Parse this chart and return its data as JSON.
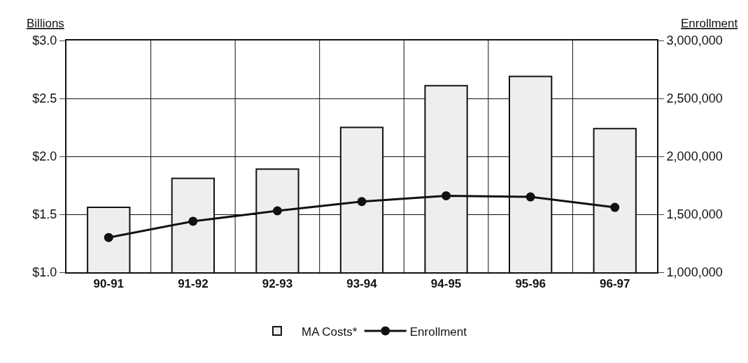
{
  "chart_data": {
    "type": "bar",
    "ylabel": "Billions",
    "y2label": "Enrollment",
    "categories": [
      "90-91",
      "91-92",
      "92-93",
      "93-94",
      "94-95",
      "95-96",
      "96-97"
    ],
    "series": [
      {
        "name": "MA Costs*",
        "color": "#eeeeee",
        "values": [
          1.56,
          1.81,
          1.89,
          2.25,
          2.61,
          2.69,
          2.24
        ]
      },
      {
        "name": "Enrollment",
        "type": "line",
        "axis": "y2",
        "color": "#111111",
        "marker": "circle",
        "values": [
          1300000,
          1440000,
          1530000,
          1610000,
          1660000,
          1650000,
          1560000
        ]
      }
    ],
    "ylim": [
      1,
      3
    ],
    "yticks": [
      {
        "value": 1,
        "label": "$1.0"
      },
      {
        "value": 1.5,
        "label": "$1.5"
      },
      {
        "value": 2,
        "label": "$2.0"
      },
      {
        "value": 2.5,
        "label": "$2.5"
      },
      {
        "value": 3,
        "label": "$3.0"
      }
    ],
    "y2lim": [
      1000000,
      3000000
    ],
    "y2ticks": [
      {
        "value": 1000000,
        "label": "1,000,000"
      },
      {
        "value": 1500000,
        "label": "1,500,000"
      },
      {
        "value": 2000000,
        "label": "2,000,000"
      },
      {
        "value": 2500000,
        "label": "2,500,000"
      },
      {
        "value": 3000000,
        "label": "3,000,000"
      }
    ],
    "grid": true,
    "legend": "bottom"
  }
}
